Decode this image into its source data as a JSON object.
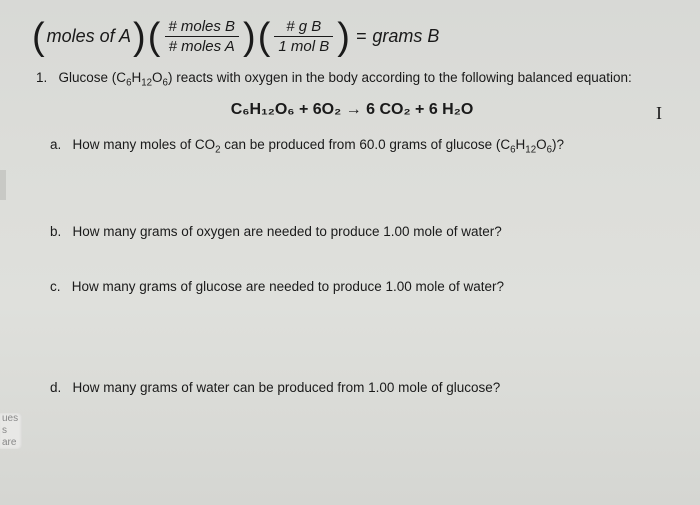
{
  "formula": {
    "lead": "moles of A",
    "frac1_num": "# moles B",
    "frac1_den": "# moles A",
    "frac2_num": "# g B",
    "frac2_den": "1 mol B",
    "equals": "=",
    "result": "grams B"
  },
  "question1": {
    "number": "1.",
    "text_before": "Glucose (C",
    "sub1": "6",
    "mid1": "H",
    "sub2": "12",
    "mid2": "O",
    "sub3": "6",
    "text_after": ") reacts with oxygen in the body according to the following balanced equation:"
  },
  "equation": {
    "full": "C₆H₁₂O₆ + 6O₂  →  6 CO₂ + 6 H₂O",
    "cursor": "I"
  },
  "parts": {
    "a": {
      "label": "a.",
      "before": "How many moles of CO",
      "s1": "2",
      "mid": " can be produced from 60.0 grams of glucose (C",
      "s2": "6",
      "m2": "H",
      "s3": "12",
      "m3": "O",
      "s4": "6",
      "after": ")?"
    },
    "b": {
      "label": "b.",
      "text": "How many grams of oxygen are needed to produce 1.00 mole of water?"
    },
    "c": {
      "label": "c.",
      "text": "How many grams of glucose are needed to produce 1.00 mole of water?"
    },
    "d": {
      "label": "d.",
      "text": "How many grams of water can be produced from 1.00 mole of glucose?"
    }
  },
  "tab": {
    "line1": "ues",
    "line2": "s are"
  }
}
